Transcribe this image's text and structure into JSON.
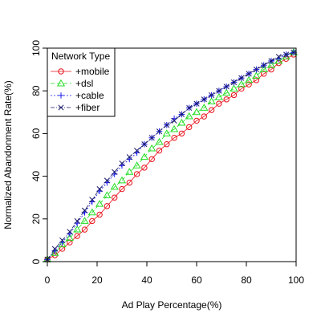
{
  "chart_data": {
    "type": "line",
    "xlabel": "Ad Play Percentage(%)",
    "ylabel": "Normalized Abandonment Rate(%)",
    "xlim": [
      0,
      100
    ],
    "ylim": [
      0,
      100
    ],
    "x_ticks": [
      0,
      20,
      40,
      60,
      80,
      100
    ],
    "y_ticks": [
      0,
      20,
      40,
      60,
      80,
      100
    ],
    "x_tick_labels": [
      "0",
      "20",
      "40",
      "60",
      "80",
      "100"
    ],
    "y_tick_labels": [
      "0",
      "20",
      "40",
      "60",
      "80",
      "100"
    ],
    "grid": false,
    "legend": {
      "title": "Network Type",
      "position": "top-left",
      "entries": [
        "+mobile",
        "+dsl",
        "+cable",
        "+fiber"
      ]
    },
    "x": [
      0,
      3,
      6,
      9,
      12,
      15,
      18,
      21,
      24,
      27,
      30,
      33,
      36,
      39,
      42,
      45,
      48,
      51,
      54,
      57,
      60,
      63,
      66,
      69,
      72,
      75,
      78,
      81,
      84,
      87,
      90,
      93,
      96,
      99
    ],
    "series": [
      {
        "name": "+mobile",
        "color": "#e8101a",
        "marker": "circle",
        "values": [
          1,
          3,
          6,
          9,
          12,
          15,
          19,
          22,
          26,
          30,
          34,
          37,
          41,
          44,
          48,
          52,
          55,
          58,
          60,
          63,
          66,
          68,
          71,
          74,
          76,
          78,
          81,
          83,
          85,
          88,
          90,
          93,
          95,
          97
        ]
      },
      {
        "name": "+dsl",
        "color": "#22dd22",
        "marker": "triangle",
        "values": [
          1,
          4,
          8,
          11,
          15,
          19,
          23,
          27,
          31,
          35,
          38,
          42,
          45,
          49,
          53,
          56,
          60,
          62,
          65,
          68,
          70,
          72,
          75,
          77,
          79,
          81,
          83,
          85,
          87,
          90,
          92,
          94,
          96,
          98
        ]
      },
      {
        "name": "+cable",
        "color": "#1a1aee",
        "marker": "plus",
        "values": [
          1,
          5,
          9,
          13,
          18,
          23,
          28,
          33,
          37,
          41,
          45,
          48,
          51,
          55,
          58,
          61,
          64,
          67,
          69,
          72,
          74,
          76,
          78,
          80,
          82,
          84,
          86,
          88,
          90,
          92,
          94,
          95,
          97,
          98
        ]
      },
      {
        "name": "+fiber",
        "color": "#1a1a66",
        "marker": "x",
        "values": [
          1,
          6,
          10,
          14,
          19,
          24,
          29,
          34,
          38,
          42,
          46,
          49,
          52,
          55,
          58,
          61,
          64,
          66,
          69,
          72,
          74,
          76,
          78,
          80,
          82,
          84,
          86,
          88,
          90,
          92,
          94,
          96,
          97,
          98
        ]
      }
    ]
  }
}
